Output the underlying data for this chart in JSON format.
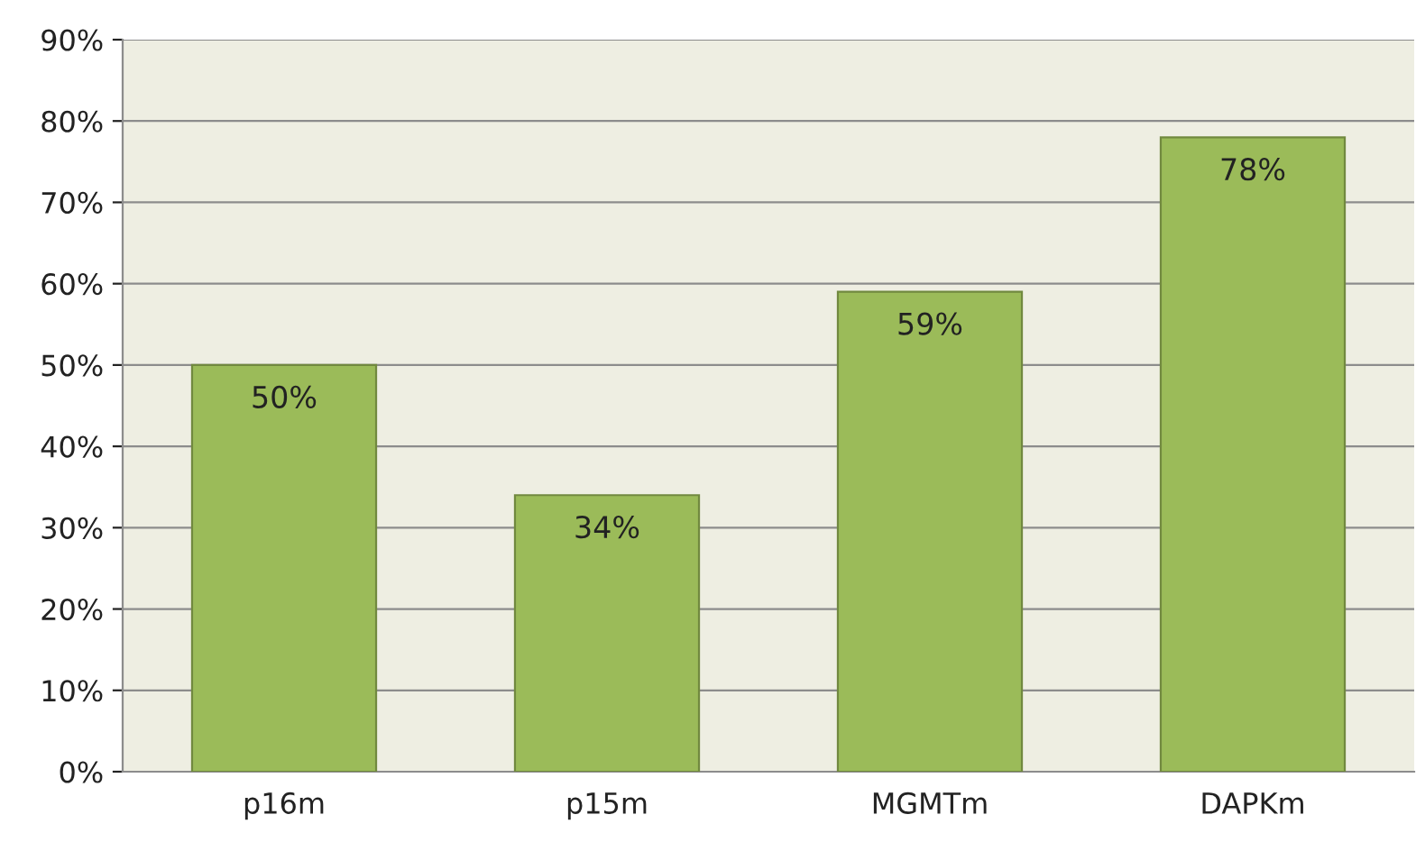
{
  "chart_data": {
    "type": "bar",
    "categories": [
      "p16m",
      "p15m",
      "MGMTm",
      "DAPKm"
    ],
    "values": [
      50,
      34,
      59,
      78
    ],
    "value_labels": [
      "50%",
      "34%",
      "59%",
      "78%"
    ],
    "color": "#9bbb59",
    "ylim": [
      0,
      90
    ],
    "yticks": [
      {
        "value": 0,
        "label": "0%"
      },
      {
        "value": 10,
        "label": "10%"
      },
      {
        "value": 20,
        "label": "20%"
      },
      {
        "value": 30,
        "label": "30%"
      },
      {
        "value": 40,
        "label": "40%"
      },
      {
        "value": 50,
        "label": "50%"
      },
      {
        "value": 60,
        "label": "60%"
      },
      {
        "value": 70,
        "label": "70%"
      },
      {
        "value": 80,
        "label": "80%"
      },
      {
        "value": 90,
        "label": "90%"
      }
    ],
    "grid": "y"
  }
}
